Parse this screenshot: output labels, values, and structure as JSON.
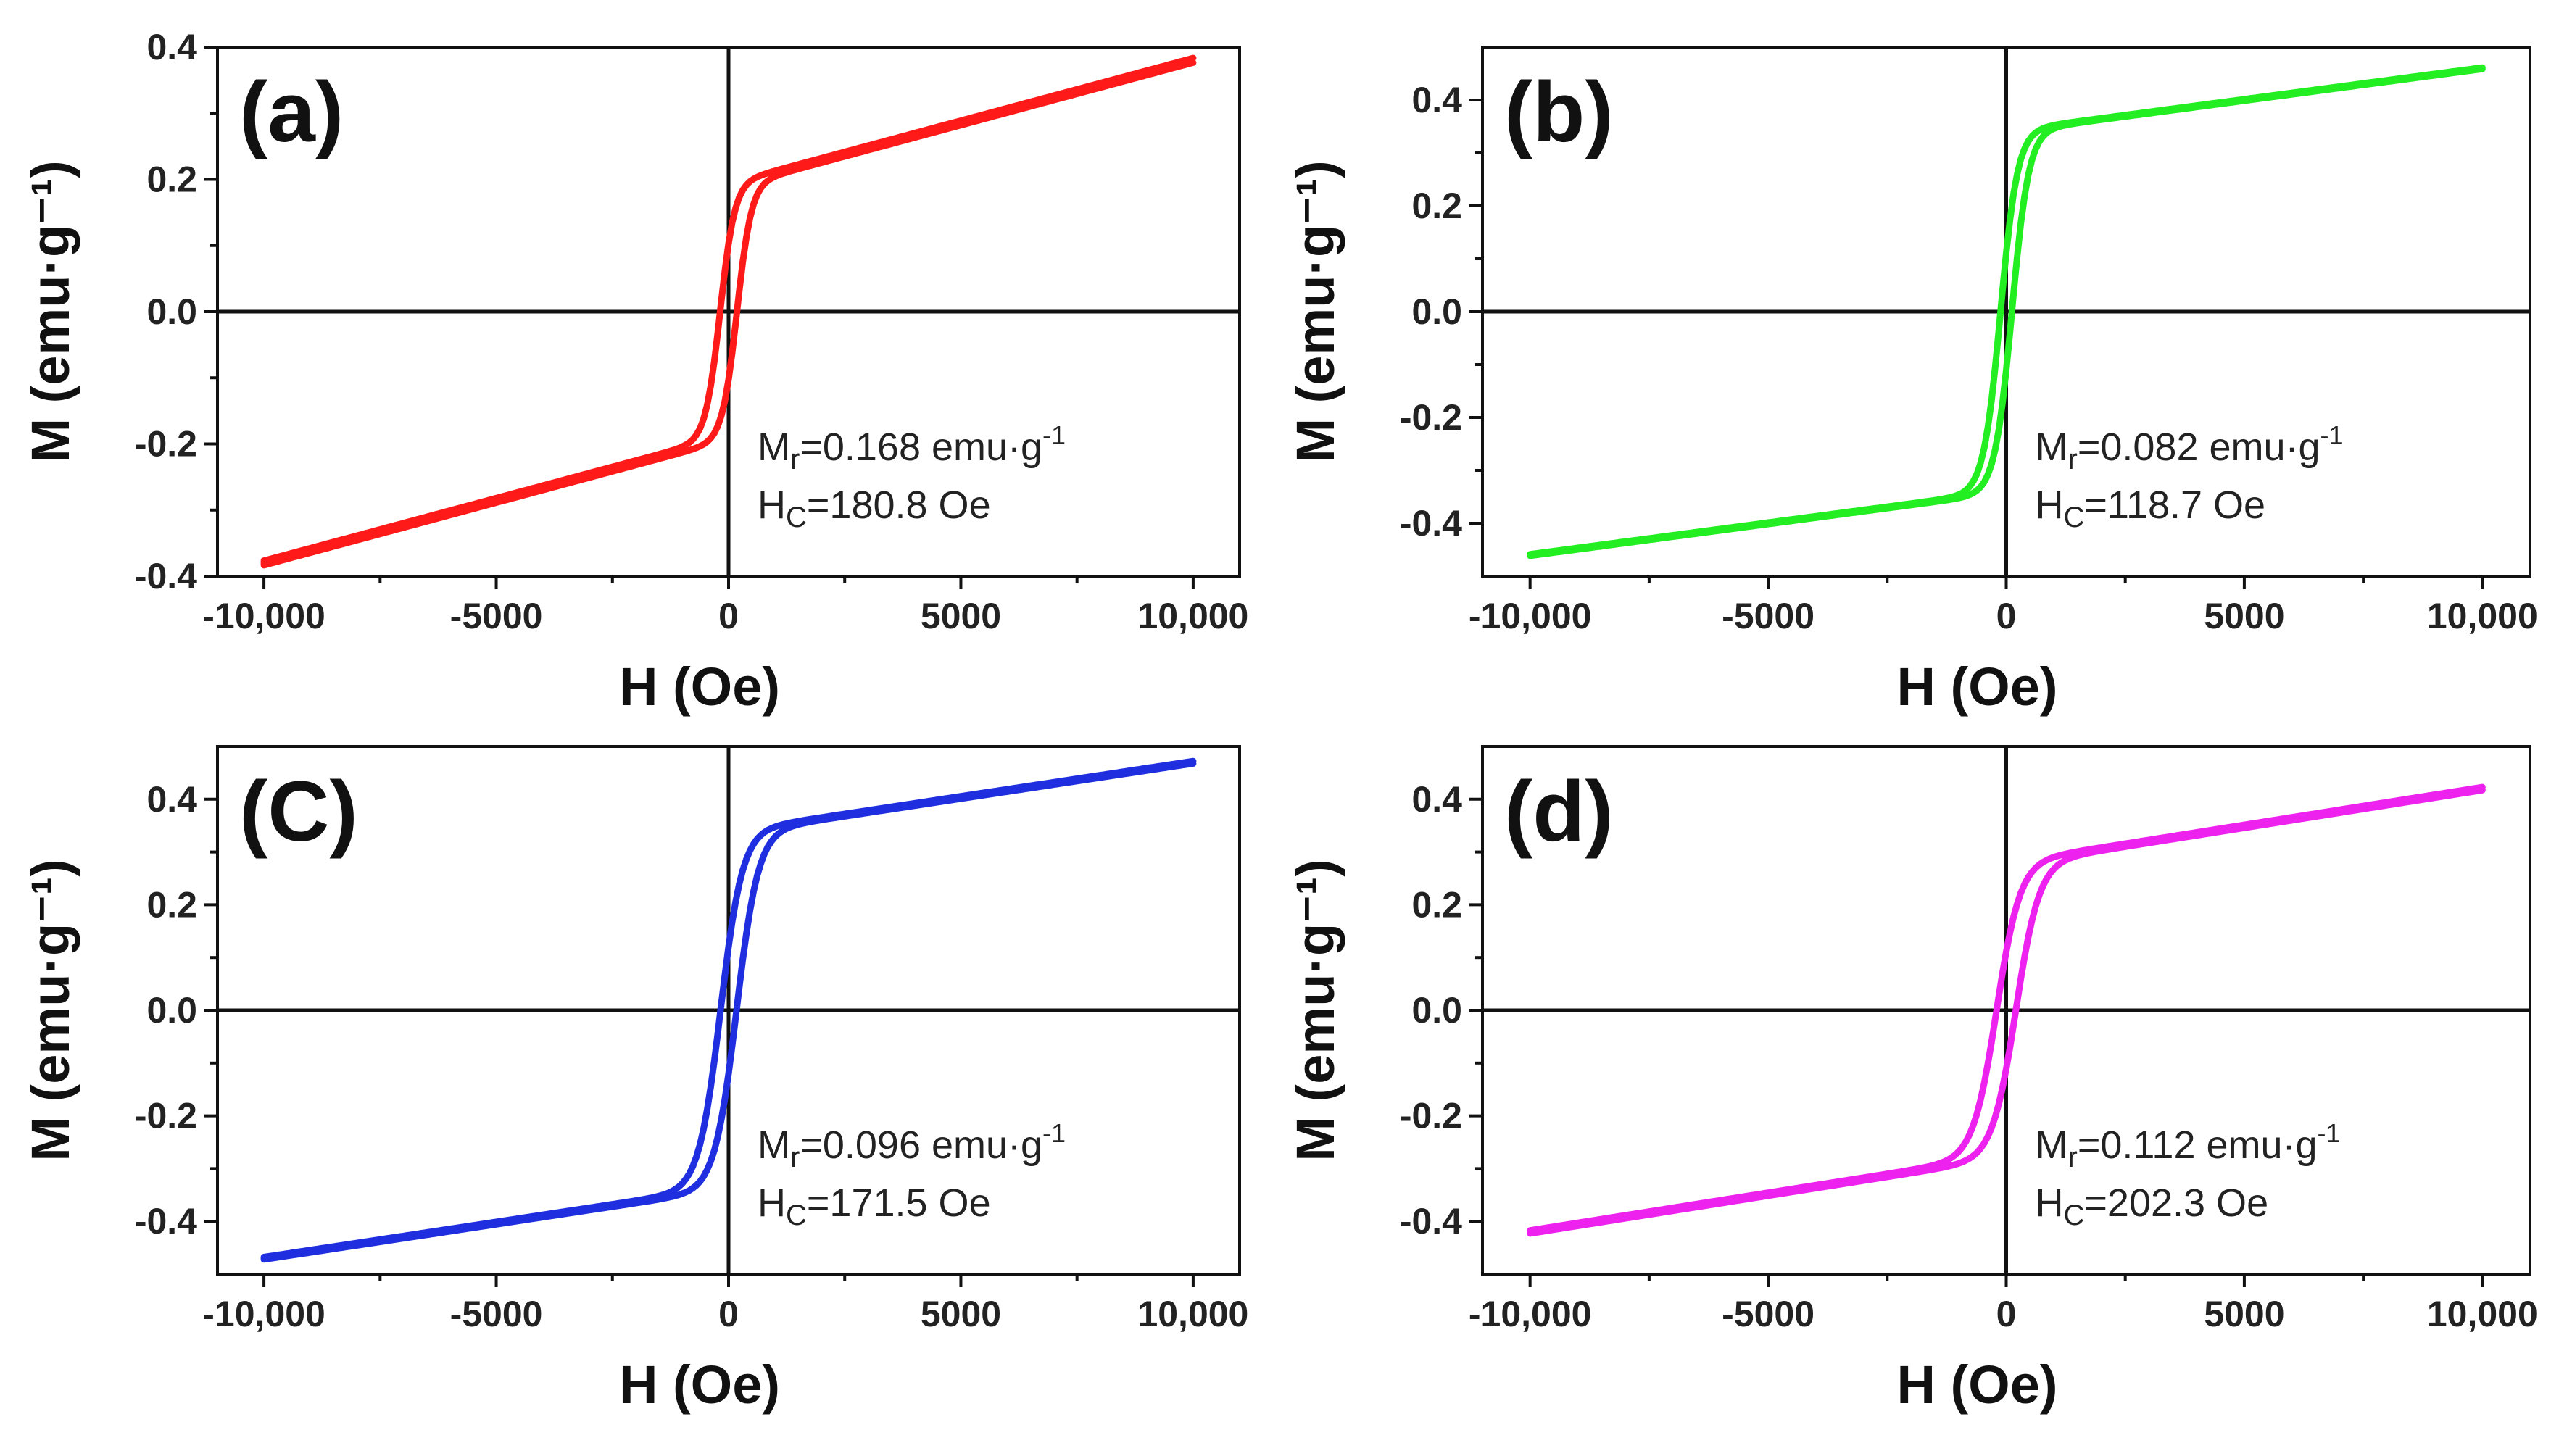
{
  "chart_data": [
    {
      "type": "line",
      "panel_label": "(a)",
      "xlabel": "H (Oe)",
      "ylabel": "M (emu·g⁻¹)",
      "xlim": [
        -11000,
        11000
      ],
      "ylim": [
        -0.4,
        0.4
      ],
      "xticks": [
        -10000,
        -5000,
        0,
        5000,
        10000
      ],
      "xtick_labels": [
        "-10,000",
        "-5000",
        "0",
        "5000",
        "10,000"
      ],
      "yticks": [
        -0.4,
        -0.2,
        0.0,
        0.2,
        0.4
      ],
      "ytick_labels": [
        "-0.4",
        "-0.2",
        "0.0",
        "0.2",
        "0.4"
      ],
      "color": "#ff1a1a",
      "Ms": 0.38,
      "Mr": 0.168,
      "Hc": 180.8,
      "annotation": {
        "mr_prefix": "M",
        "mr_sub": "r",
        "mr_text": "=0.168 emu·g",
        "mr_sup": "-1",
        "hc_prefix": "H",
        "hc_sub": "C",
        "hc_text": "=180.8 Oe"
      }
    },
    {
      "type": "line",
      "panel_label": "(b)",
      "xlabel": "H (Oe)",
      "ylabel": "M (emu·g⁻¹)",
      "xlim": [
        -11000,
        11000
      ],
      "ylim": [
        -0.5,
        0.5
      ],
      "xticks": [
        -10000,
        -5000,
        0,
        5000,
        10000
      ],
      "xtick_labels": [
        "-10,000",
        "-5000",
        "0",
        "5000",
        "10,000"
      ],
      "yticks": [
        -0.4,
        -0.2,
        0.0,
        0.2,
        0.4
      ],
      "ytick_labels": [
        "-0.4",
        "-0.2",
        "0.0",
        "0.2",
        "0.4"
      ],
      "color": "#22ee22",
      "Ms": 0.46,
      "Mr": 0.082,
      "Hc": 118.7,
      "annotation": {
        "mr_prefix": "M",
        "mr_sub": "r",
        "mr_text": "=0.082 emu·g",
        "mr_sup": "-1",
        "hc_prefix": "H",
        "hc_sub": "C",
        "hc_text": "=118.7 Oe"
      }
    },
    {
      "type": "line",
      "panel_label": "(C)",
      "xlabel": "H (Oe)",
      "ylabel": "M (emu·g⁻¹)",
      "xlim": [
        -11000,
        11000
      ],
      "ylim": [
        -0.5,
        0.5
      ],
      "xticks": [
        -10000,
        -5000,
        0,
        5000,
        10000
      ],
      "xtick_labels": [
        "-10,000",
        "-5000",
        "0",
        "5000",
        "10,000"
      ],
      "yticks": [
        -0.4,
        -0.2,
        0.0,
        0.2,
        0.4
      ],
      "ytick_labels": [
        "-0.4",
        "-0.2",
        "0.0",
        "0.2",
        "0.4"
      ],
      "color": "#1f2fe0",
      "Ms": 0.47,
      "Mr": 0.096,
      "Hc": 171.5,
      "annotation": {
        "mr_prefix": "M",
        "mr_sub": "r",
        "mr_text": "=0.096 emu·g",
        "mr_sup": "-1",
        "hc_prefix": "H",
        "hc_sub": "C",
        "hc_text": "=171.5 Oe"
      }
    },
    {
      "type": "line",
      "panel_label": "(d)",
      "xlabel": "H (Oe)",
      "ylabel": "M (emu·g⁻¹)",
      "xlim": [
        -11000,
        11000
      ],
      "ylim": [
        -0.5,
        0.5
      ],
      "xticks": [
        -10000,
        -5000,
        0,
        5000,
        10000
      ],
      "xtick_labels": [
        "-10,000",
        "-5000",
        "0",
        "5000",
        "10,000"
      ],
      "yticks": [
        -0.4,
        -0.2,
        0.0,
        0.2,
        0.4
      ],
      "ytick_labels": [
        "-0.4",
        "-0.2",
        "0.0",
        "0.2",
        "0.4"
      ],
      "color": "#ee22ee",
      "Ms": 0.42,
      "Mr": 0.112,
      "Hc": 202.3,
      "annotation": {
        "mr_prefix": "M",
        "mr_sub": "r",
        "mr_text": "=0.112 emu·g",
        "mr_sup": "-1",
        "hc_prefix": "H",
        "hc_sub": "C",
        "hc_text": "=202.3 Oe"
      }
    }
  ]
}
